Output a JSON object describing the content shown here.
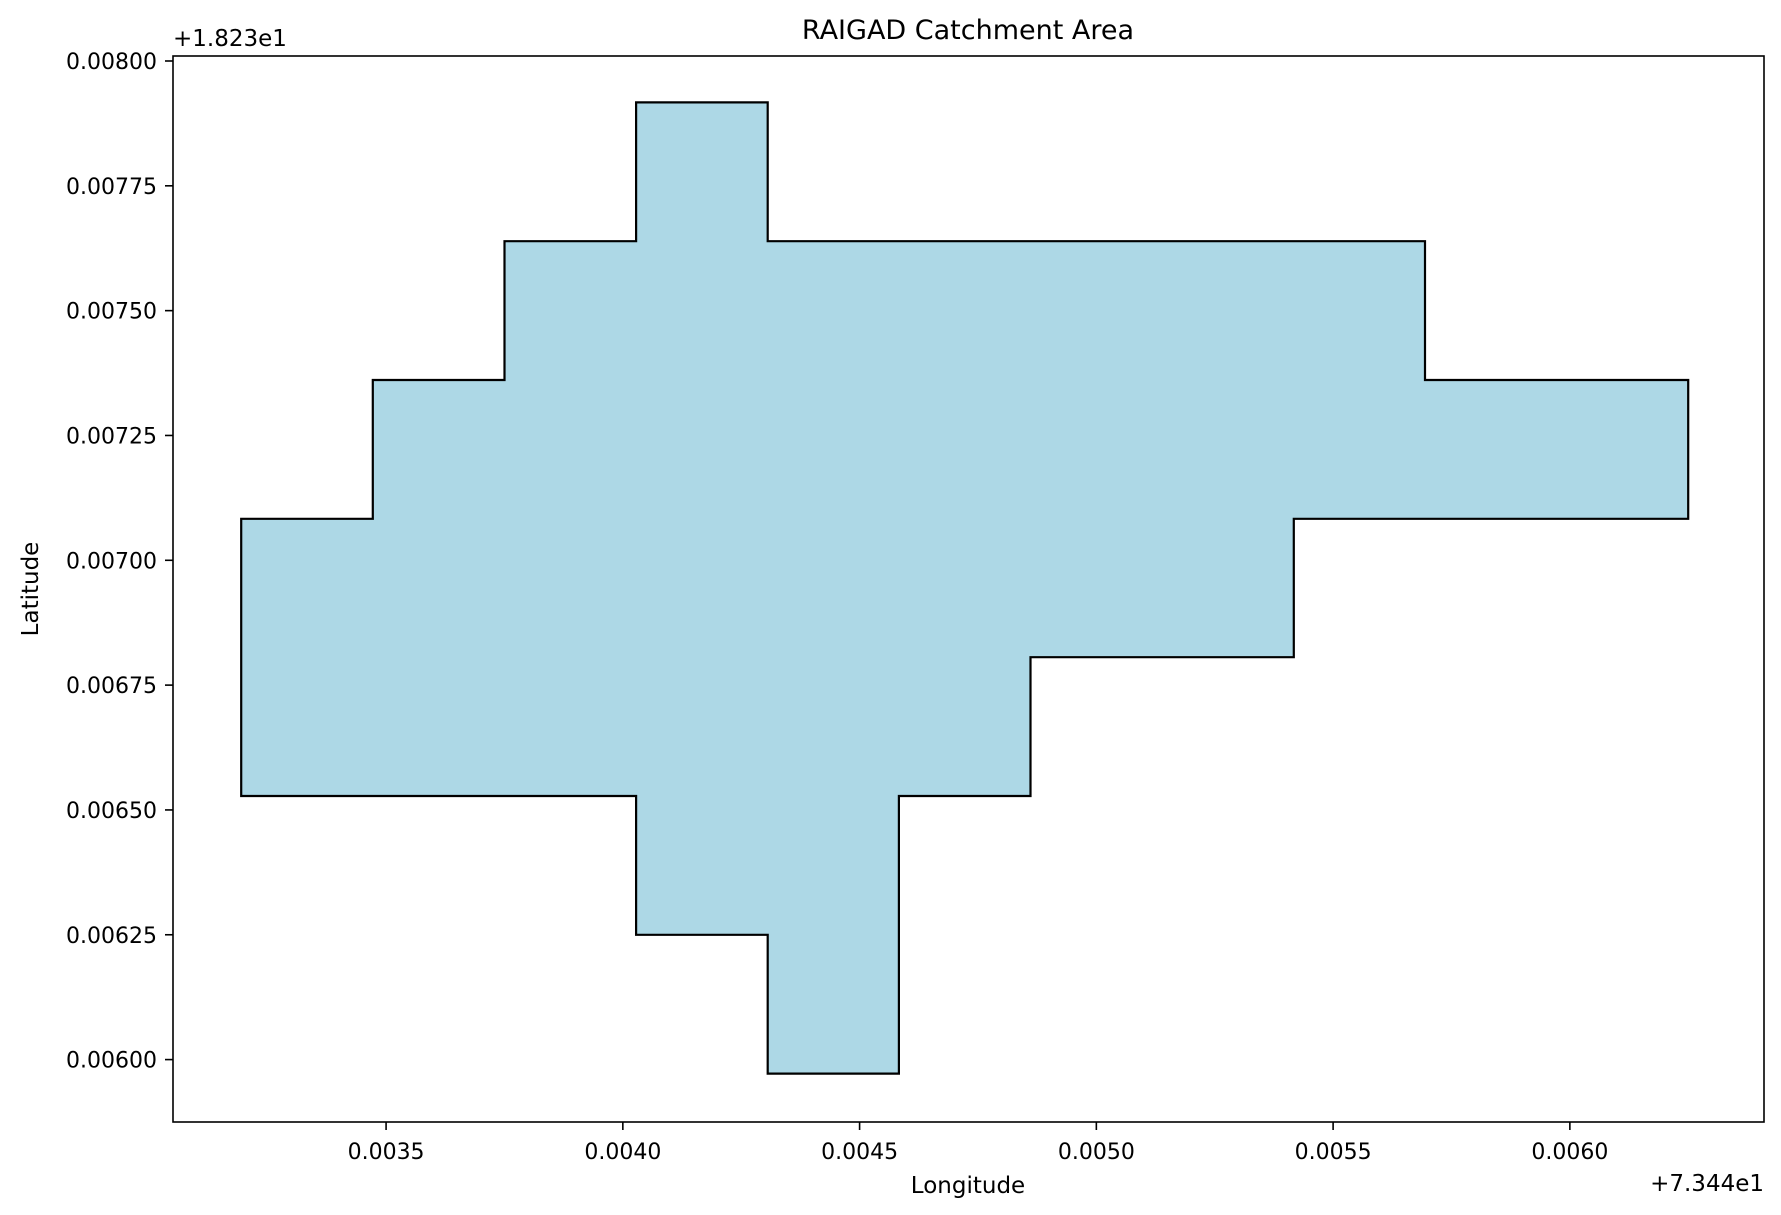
{
  "chart_data": {
    "type": "area",
    "title": "RAIGAD Catchment Area",
    "xlabel": "Longitude",
    "ylabel": "Latitude",
    "x_offset_label": "+7.344e1",
    "y_offset_label": "+1.823e1",
    "xlim": [
      0.00305,
      0.00641
    ],
    "ylim": [
      0.005875,
      0.00801
    ],
    "x_ticks": [
      0.0035,
      0.004,
      0.0045,
      0.005,
      0.0055,
      0.006
    ],
    "x_tick_labels": [
      "0.0035",
      "0.0040",
      "0.0045",
      "0.0050",
      "0.0055",
      "0.0060"
    ],
    "y_ticks": [
      0.006,
      0.00625,
      0.0065,
      0.00675,
      0.007,
      0.00725,
      0.0075,
      0.00775,
      0.008
    ],
    "y_tick_labels": [
      "0.00600",
      "0.00625",
      "0.00650",
      "0.00675",
      "0.00700",
      "0.00725",
      "0.00750",
      "0.00775",
      "0.00800"
    ],
    "grid": false,
    "fill_color": "#add8e6",
    "edge_color": "#000000",
    "polygon": [
      [
        0.004306,
        0.005972
      ],
      [
        0.004583,
        0.005972
      ],
      [
        0.004583,
        0.006528
      ],
      [
        0.004861,
        0.006528
      ],
      [
        0.004861,
        0.006806
      ],
      [
        0.005417,
        0.006806
      ],
      [
        0.005417,
        0.007083
      ],
      [
        0.00625,
        0.007083
      ],
      [
        0.00625,
        0.007361
      ],
      [
        0.005694,
        0.007361
      ],
      [
        0.005694,
        0.007639
      ],
      [
        0.004306,
        0.007639
      ],
      [
        0.004306,
        0.007917
      ],
      [
        0.004028,
        0.007917
      ],
      [
        0.004028,
        0.007639
      ],
      [
        0.00375,
        0.007639
      ],
      [
        0.00375,
        0.007361
      ],
      [
        0.003472,
        0.007361
      ],
      [
        0.003472,
        0.007083
      ],
      [
        0.003194,
        0.007083
      ],
      [
        0.003194,
        0.006528
      ],
      [
        0.004028,
        0.006528
      ],
      [
        0.004028,
        0.00625
      ],
      [
        0.004306,
        0.00625
      ]
    ]
  }
}
